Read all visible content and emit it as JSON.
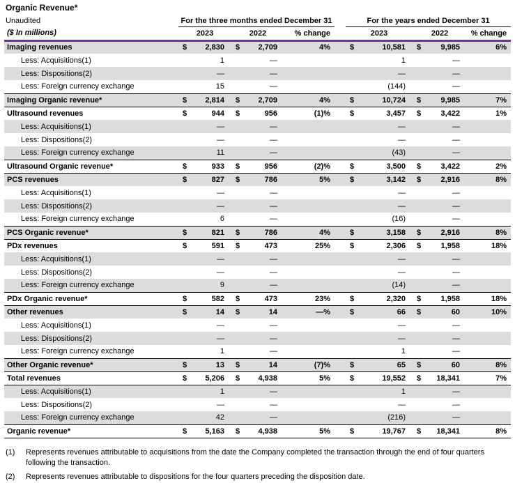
{
  "page": {
    "title": "Organic Revenue*",
    "subtitle": "Unaudited",
    "units": "($ In millions)"
  },
  "colors": {
    "accent_purple": "#7030a0",
    "band_gray": "#dcdcdc",
    "border_black": "#000000"
  },
  "table": {
    "currency_symbol": "$",
    "group_headers": [
      {
        "label": "For the three months ended December 31"
      },
      {
        "label": "For the years ended December 31"
      }
    ],
    "year_headers": [
      "2023",
      "2022",
      "% change",
      "2023",
      "2022",
      "% change"
    ],
    "rows": [
      {
        "label": "Imaging revenues",
        "type": "section",
        "dollar": true,
        "cells": [
          "2,830",
          "2,709",
          "4%",
          "10,581",
          "9,985",
          "6%"
        ]
      },
      {
        "label": "Less: Acquisitions(1)",
        "type": "detail",
        "dollar": false,
        "cells": [
          "1",
          "—",
          "",
          "1",
          "—",
          ""
        ]
      },
      {
        "label": "Less: Dispositions(2)",
        "type": "detail",
        "dollar": false,
        "cells": [
          "—",
          "—",
          "",
          "—",
          "—",
          ""
        ]
      },
      {
        "label": "Less: Foreign currency exchange",
        "type": "detail",
        "dollar": false,
        "cells": [
          "15",
          "—",
          "",
          "(144)",
          "—",
          ""
        ]
      },
      {
        "label": "Imaging Organic revenue*",
        "type": "organic",
        "dollar": true,
        "cells": [
          "2,814",
          "2,709",
          "4%",
          "10,724",
          "9,985",
          "7%"
        ]
      },
      {
        "label": "Ultrasound revenues",
        "type": "section",
        "dollar": true,
        "cells": [
          "944",
          "956",
          "(1)%",
          "3,457",
          "3,422",
          "1%"
        ]
      },
      {
        "label": "Less: Acquisitions(1)",
        "type": "detail",
        "dollar": false,
        "cells": [
          "—",
          "—",
          "",
          "—",
          "—",
          ""
        ]
      },
      {
        "label": "Less: Dispositions(2)",
        "type": "detail",
        "dollar": false,
        "cells": [
          "—",
          "—",
          "",
          "—",
          "—",
          ""
        ]
      },
      {
        "label": "Less: Foreign currency exchange",
        "type": "detail",
        "dollar": false,
        "cells": [
          "11",
          "—",
          "",
          "(43)",
          "—",
          ""
        ]
      },
      {
        "label": "Ultrasound Organic revenue*",
        "type": "organic",
        "dollar": true,
        "cells": [
          "933",
          "956",
          "(2)%",
          "3,500",
          "3,422",
          "2%"
        ]
      },
      {
        "label": "PCS revenues",
        "type": "section",
        "dollar": true,
        "cells": [
          "827",
          "786",
          "5%",
          "3,142",
          "2,916",
          "8%"
        ]
      },
      {
        "label": "Less: Acquisitions(1)",
        "type": "detail",
        "dollar": false,
        "cells": [
          "—",
          "—",
          "",
          "—",
          "—",
          ""
        ]
      },
      {
        "label": "Less: Dispositions(2)",
        "type": "detail",
        "dollar": false,
        "cells": [
          "—",
          "—",
          "",
          "—",
          "—",
          ""
        ]
      },
      {
        "label": "Less: Foreign currency exchange",
        "type": "detail",
        "dollar": false,
        "cells": [
          "6",
          "—",
          "",
          "(16)",
          "—",
          ""
        ]
      },
      {
        "label": "PCS Organic revenue*",
        "type": "organic",
        "dollar": true,
        "cells": [
          "821",
          "786",
          "4%",
          "3,158",
          "2,916",
          "8%"
        ]
      },
      {
        "label": "PDx revenues",
        "type": "section",
        "dollar": true,
        "cells": [
          "591",
          "473",
          "25%",
          "2,306",
          "1,958",
          "18%"
        ]
      },
      {
        "label": "Less: Acquisitions(1)",
        "type": "detail",
        "dollar": false,
        "cells": [
          "—",
          "—",
          "",
          "—",
          "—",
          ""
        ]
      },
      {
        "label": "Less: Dispositions(2)",
        "type": "detail",
        "dollar": false,
        "cells": [
          "—",
          "—",
          "",
          "—",
          "—",
          ""
        ]
      },
      {
        "label": "Less: Foreign currency exchange",
        "type": "detail",
        "dollar": false,
        "cells": [
          "9",
          "—",
          "",
          "(14)",
          "—",
          ""
        ]
      },
      {
        "label": "PDx Organic revenue*",
        "type": "organic",
        "dollar": true,
        "cells": [
          "582",
          "473",
          "23%",
          "2,320",
          "1,958",
          "18%"
        ]
      },
      {
        "label": "Other revenues",
        "type": "section",
        "dollar": true,
        "cells": [
          "14",
          "14",
          "—%",
          "66",
          "60",
          "10%"
        ]
      },
      {
        "label": "Less: Acquisitions(1)",
        "type": "detail",
        "dollar": false,
        "cells": [
          "—",
          "—",
          "",
          "—",
          "—",
          ""
        ]
      },
      {
        "label": "Less: Dispositions(2)",
        "type": "detail",
        "dollar": false,
        "cells": [
          "—",
          "—",
          "",
          "—",
          "—",
          ""
        ]
      },
      {
        "label": "Less: Foreign currency exchange",
        "type": "detail",
        "dollar": false,
        "cells": [
          "1",
          "—",
          "",
          "1",
          "—",
          ""
        ]
      },
      {
        "label": "Other Organic revenue*",
        "type": "organic",
        "dollar": true,
        "cells": [
          "13",
          "14",
          "(7)%",
          "65",
          "60",
          "8%"
        ]
      },
      {
        "label": "Total revenues",
        "type": "section",
        "dollar": true,
        "underline": true,
        "cells": [
          "5,206",
          "4,938",
          "5%",
          "19,552",
          "18,341",
          "7%"
        ]
      },
      {
        "label": "Less: Acquisitions(1)",
        "type": "detail",
        "dollar": false,
        "cells": [
          "1",
          "—",
          "",
          "1",
          "—",
          ""
        ]
      },
      {
        "label": "Less: Dispositions(2)",
        "type": "detail",
        "dollar": false,
        "cells": [
          "—",
          "—",
          "",
          "—",
          "—",
          ""
        ]
      },
      {
        "label": "Less: Foreign currency exchange",
        "type": "detail",
        "dollar": false,
        "cells": [
          "42",
          "—",
          "",
          "(216)",
          "—",
          ""
        ]
      },
      {
        "label": "Organic revenue*",
        "type": "organic",
        "dollar": true,
        "cells": [
          "5,163",
          "4,938",
          "5%",
          "19,767",
          "18,341",
          "8%"
        ]
      }
    ]
  },
  "footnotes": [
    {
      "marker": "(1)",
      "text": "Represents revenues attributable to acquisitions from the date the Company completed the transaction through the end of four quarters following the transaction."
    },
    {
      "marker": "(2)",
      "text": "Represents revenues attributable to dispositions for the four quarters preceding the disposition date."
    }
  ]
}
